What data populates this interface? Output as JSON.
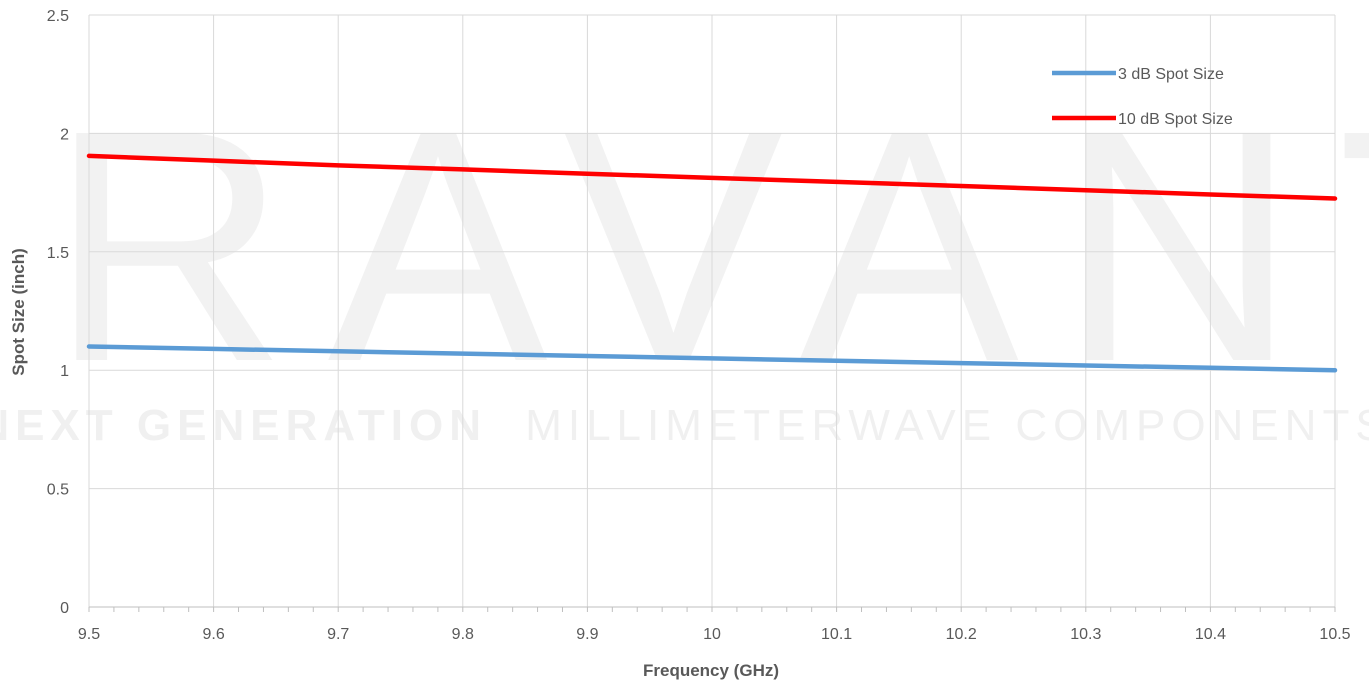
{
  "watermark": {
    "logo_text": "ERAVANT",
    "tagline_bold": "NEXT GENERATION",
    "tagline_light": "MILLIMETERWAVE COMPONENTS"
  },
  "colors": {
    "series_3db": "#5b9bd5",
    "series_10db": "#ff0000",
    "grid": "#d9d9d9",
    "text": "#595959"
  },
  "chart_data": {
    "type": "line",
    "title": "",
    "xlabel": "Frequency (GHz)",
    "ylabel": "Spot Size (inch)",
    "xlim": [
      9.5,
      10.5
    ],
    "ylim": [
      0,
      2.5
    ],
    "x_ticks": [
      "9.5",
      "9.6",
      "9.7",
      "9.8",
      "9.9",
      "10",
      "10.1",
      "10.2",
      "10.3",
      "10.4",
      "10.5"
    ],
    "y_ticks": [
      "0",
      "0.5",
      "1",
      "1.5",
      "2",
      "2.5"
    ],
    "grid": true,
    "legend_position": "top-right",
    "series": [
      {
        "name": "3 dB Spot Size",
        "color": "#5b9bd5",
        "x": [
          9.5,
          9.6,
          9.7,
          9.8,
          9.9,
          10.0,
          10.1,
          10.2,
          10.3,
          10.4,
          10.5
        ],
        "y": [
          1.1,
          1.09,
          1.08,
          1.07,
          1.06,
          1.05,
          1.04,
          1.03,
          1.02,
          1.01,
          1.0
        ]
      },
      {
        "name": "10 dB Spot Size",
        "color": "#ff0000",
        "x": [
          9.5,
          9.6,
          9.7,
          9.8,
          9.9,
          10.0,
          10.1,
          10.2,
          10.3,
          10.4,
          10.5
        ],
        "y": [
          1.905,
          1.885,
          1.865,
          1.848,
          1.83,
          1.812,
          1.795,
          1.778,
          1.76,
          1.742,
          1.725
        ]
      }
    ]
  }
}
